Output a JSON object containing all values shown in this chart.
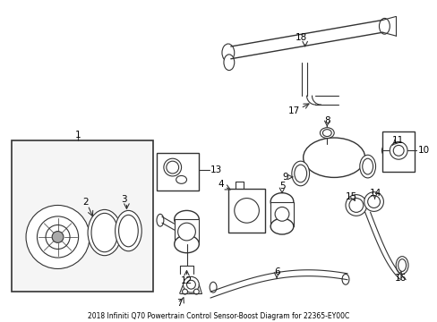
{
  "title": "2018 Infiniti Q70 Powertrain Control Sensor-Boost Diagram for 22365-EY00C",
  "bg_color": "#ffffff",
  "line_color": "#333333",
  "label_color": "#000000",
  "figsize": [
    4.89,
    3.6
  ],
  "dpi": 100
}
